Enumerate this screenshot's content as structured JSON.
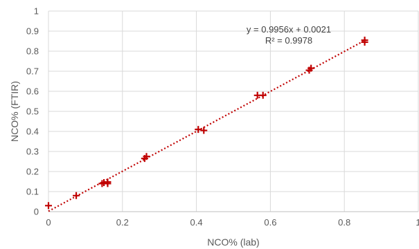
{
  "chart_data": {
    "type": "scatter",
    "xlabel": "NCO% (lab)",
    "ylabel": "NCO% (FTIR)",
    "xlim": [
      0,
      1
    ],
    "ylim": [
      0,
      1
    ],
    "x_ticks": [
      "0",
      "0.2",
      "0.4",
      "0.6",
      "0.8",
      "1"
    ],
    "y_ticks": [
      "0",
      "0.1",
      "0.2",
      "0.3",
      "0.4",
      "0.5",
      "0.6",
      "0.7",
      "0.8",
      "0.9",
      "1"
    ],
    "grid": true,
    "marker_color": "#C00000",
    "trendline_color": "#C00000",
    "series": [
      {
        "points": [
          {
            "x": 0.0,
            "y": 0.03
          },
          {
            "x": 0.075,
            "y": 0.08
          },
          {
            "x": 0.145,
            "y": 0.14
          },
          {
            "x": 0.15,
            "y": 0.145
          },
          {
            "x": 0.16,
            "y": 0.14
          },
          {
            "x": 0.16,
            "y": 0.148
          },
          {
            "x": 0.26,
            "y": 0.265
          },
          {
            "x": 0.265,
            "y": 0.275
          },
          {
            "x": 0.405,
            "y": 0.41
          },
          {
            "x": 0.42,
            "y": 0.405
          },
          {
            "x": 0.565,
            "y": 0.58
          },
          {
            "x": 0.58,
            "y": 0.58
          },
          {
            "x": 0.705,
            "y": 0.705
          },
          {
            "x": 0.71,
            "y": 0.715
          },
          {
            "x": 0.855,
            "y": 0.845
          },
          {
            "x": 0.855,
            "y": 0.855
          }
        ]
      }
    ],
    "trendline": {
      "slope": 0.9956,
      "intercept": 0.0021,
      "x_range": [
        0,
        0.855
      ]
    },
    "annotations": {
      "equation": "y = 0.9956x + 0.0021",
      "r_squared": "R² = 0.9978"
    }
  }
}
